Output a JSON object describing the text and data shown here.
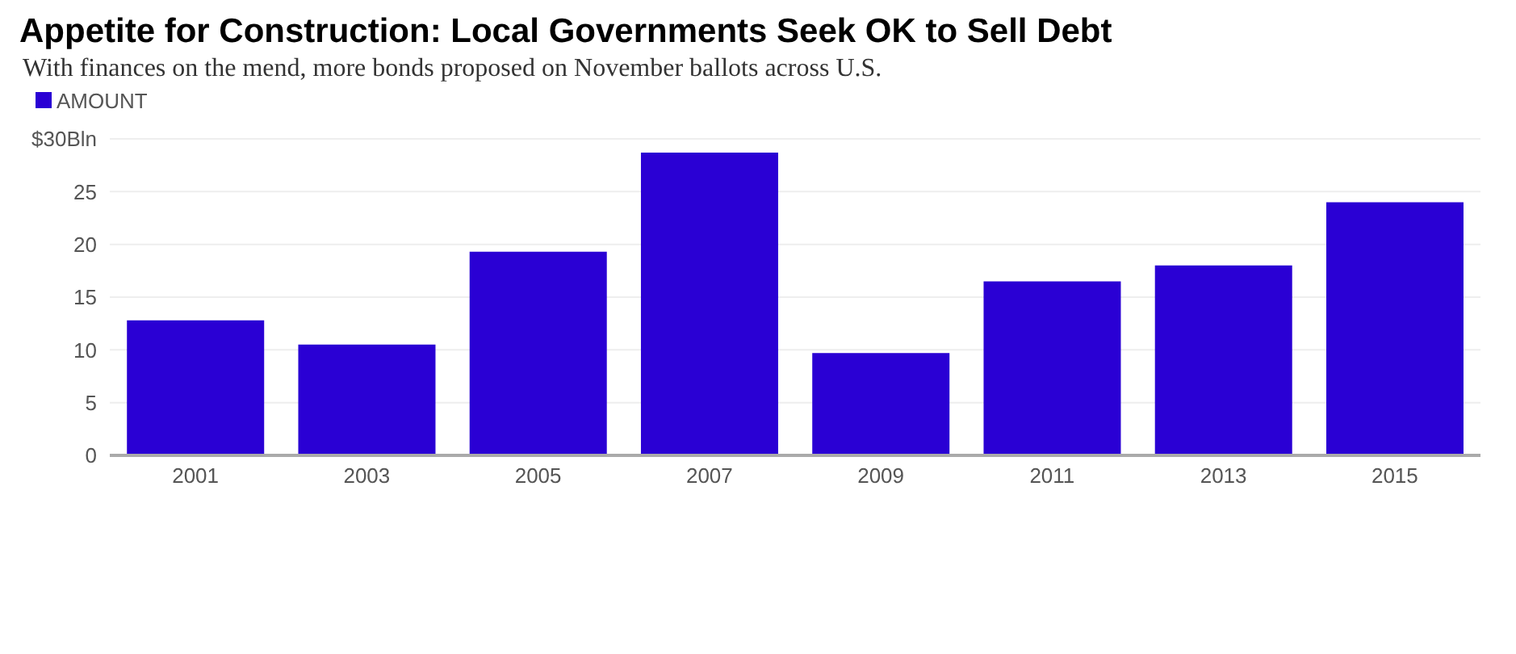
{
  "chart_data": {
    "type": "bar",
    "title": "Appetite for Construction: Local Governments Seek OK to Sell Debt",
    "subtitle": "With finances on the mend, more bonds proposed on November ballots across U.S.",
    "categories": [
      "2001",
      "2003",
      "2005",
      "2007",
      "2009",
      "2011",
      "2013",
      "2015"
    ],
    "series": [
      {
        "name": "AMOUNT",
        "color": "#2a00d4",
        "values": [
          12.8,
          10.5,
          19.3,
          28.7,
          9.7,
          16.5,
          18.0,
          24.0
        ]
      }
    ],
    "ylim": [
      0,
      30
    ],
    "yticks": [
      0,
      5,
      10,
      15,
      20,
      25,
      {
        "value": 30,
        "label": "$30Bln"
      }
    ],
    "grid": "y",
    "legend": "top left"
  }
}
